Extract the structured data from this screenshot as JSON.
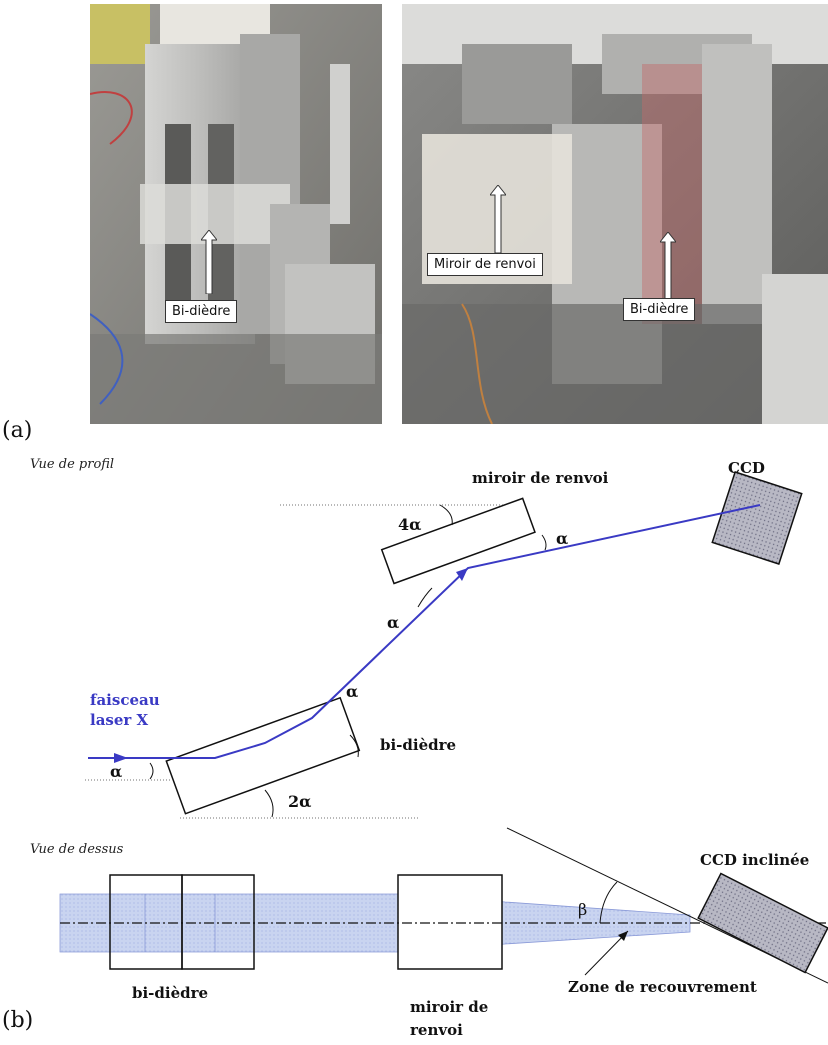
{
  "panels": {
    "a": "(a)",
    "b": "(b)"
  },
  "photos": {
    "left_callout": "Bi-dièdre",
    "right_callout_1": "Miroir de renvoi",
    "right_callout_2": "Bi-dièdre"
  },
  "profile_view": {
    "title": "Vue de profil",
    "beam_label_1": "faisceau",
    "beam_label_2": "laser X",
    "bidiedre": "bi-dièdre",
    "mirror": "miroir de renvoi",
    "ccd": "CCD",
    "alpha": "α",
    "two_alpha": "2α",
    "four_alpha": "4α"
  },
  "top_view": {
    "title": "Vue de dessus",
    "bidiedre": "bi-dièdre",
    "mirror_1": "miroir de",
    "mirror_2": "renvoi",
    "ccd": "CCD inclinée",
    "beta": "β",
    "overlap": "Zone de recouvrement"
  },
  "colors": {
    "beam": "#3a3ac4",
    "ccd_fill": "#b8b8c4",
    "beam_band": "#c9d4f0"
  }
}
